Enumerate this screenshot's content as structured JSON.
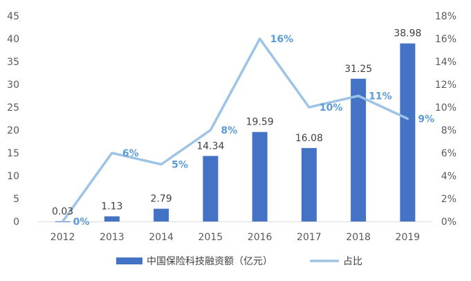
{
  "chart_data": {
    "type": "bar",
    "categories": [
      "2012",
      "2013",
      "2014",
      "2015",
      "2016",
      "2017",
      "2018",
      "2019"
    ],
    "series": [
      {
        "name": "中国保险科技融资额（亿元）",
        "type": "bar",
        "axis": "left",
        "color": "#4472c4",
        "values": [
          0.03,
          1.13,
          2.79,
          14.34,
          19.59,
          16.08,
          31.25,
          38.98
        ],
        "labels": [
          "0.03",
          "1.13",
          "2.79",
          "14.34",
          "19.59",
          "16.08",
          "31.25",
          "38.98"
        ]
      },
      {
        "name": "占比",
        "type": "line",
        "axis": "right",
        "color": "#9dc3e6",
        "values": [
          0,
          6,
          5,
          8,
          16,
          10,
          11,
          9
        ],
        "labels": [
          "0%",
          "6%",
          "5%",
          "8%",
          "16%",
          "10%",
          "11%",
          "9%"
        ]
      }
    ],
    "ylim": [
      0,
      45
    ],
    "yticks": [
      "0",
      "5",
      "10",
      "15",
      "20",
      "25",
      "30",
      "35",
      "40",
      "45"
    ],
    "y2lim": [
      0,
      18
    ],
    "y2ticks": [
      "0%",
      "2%",
      "4%",
      "6%",
      "8%",
      "10%",
      "12%",
      "14%",
      "16%",
      "18%"
    ],
    "grid": false,
    "legend": "bottom"
  }
}
